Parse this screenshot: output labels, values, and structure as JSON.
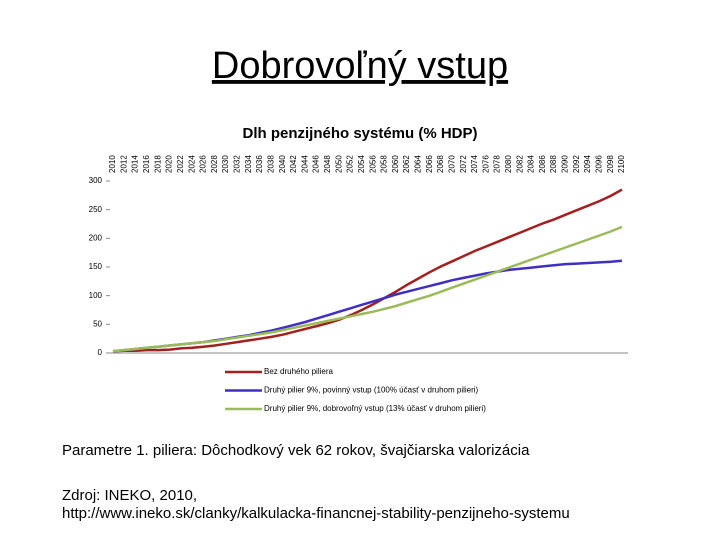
{
  "slide": {
    "title": "Dobrovoľný vstup",
    "notes": [
      "Parametre 1. piliera: Dôchodkový vek 62 rokov, švajčiarska valorizácia",
      "Zdroj: INEKO, 2010,",
      "http://www.ineko.sk/clanky/kalkulacka-financnej-stability-penzijneho-systemu"
    ]
  },
  "chart_data": {
    "type": "line",
    "title": "Dlh penzijného systému (% HDP)",
    "categories": [
      "2010",
      "2012",
      "2014",
      "2016",
      "2018",
      "2020",
      "2022",
      "2024",
      "2026",
      "2028",
      "2030",
      "2032",
      "2034",
      "2036",
      "2038",
      "2040",
      "2042",
      "2044",
      "2046",
      "2048",
      "2050",
      "2052",
      "2054",
      "2056",
      "2058",
      "2060",
      "2062",
      "2064",
      "2066",
      "2068",
      "2070",
      "2072",
      "2074",
      "2076",
      "2078",
      "2080",
      "2082",
      "2084",
      "2086",
      "2088",
      "2090",
      "2092",
      "2094",
      "2096",
      "2098",
      "2100"
    ],
    "series": [
      {
        "name": "Bez druhého piliera",
        "color": "#a3201f",
        "values": [
          3,
          4,
          4,
          5,
          5,
          6,
          8,
          9,
          11,
          13,
          16,
          19,
          22,
          25,
          28,
          32,
          37,
          42,
          47,
          52,
          58,
          66,
          75,
          85,
          96,
          107,
          119,
          130,
          141,
          151,
          160,
          169,
          178,
          186,
          194,
          202,
          210,
          218,
          226,
          233,
          241,
          249,
          257,
          265,
          274,
          285
        ]
      },
      {
        "name": "Druhý pilier 9%, povinný vstup (100% účasť v druhom pilieri)",
        "color": "#3f2fc4",
        "values": [
          3,
          5,
          7,
          9,
          11,
          13,
          15,
          17,
          19,
          22,
          25,
          28,
          31,
          35,
          39,
          44,
          49,
          54,
          60,
          66,
          72,
          78,
          84,
          90,
          96,
          102,
          107,
          112,
          117,
          122,
          127,
          131,
          135,
          139,
          142,
          145,
          147,
          149,
          151,
          153,
          155,
          156,
          157,
          158,
          159,
          161
        ]
      },
      {
        "name": "Druhý pilier 9%, dobrovoľný vstup (13% účasť v druhom pilieri)",
        "color": "#9bbb59",
        "values": [
          3,
          5,
          7,
          9,
          11,
          13,
          15,
          17,
          19,
          21,
          24,
          27,
          30,
          33,
          36,
          40,
          44,
          48,
          52,
          56,
          60,
          64,
          68,
          72,
          77,
          82,
          88,
          94,
          100,
          107,
          114,
          121,
          128,
          135,
          142,
          149,
          156,
          163,
          170,
          177,
          184,
          191,
          198,
          205,
          212,
          220
        ]
      }
    ],
    "ylim": [
      0,
      300
    ],
    "yticks": [
      0,
      50,
      100,
      150,
      200,
      250,
      300
    ],
    "grid": false
  }
}
